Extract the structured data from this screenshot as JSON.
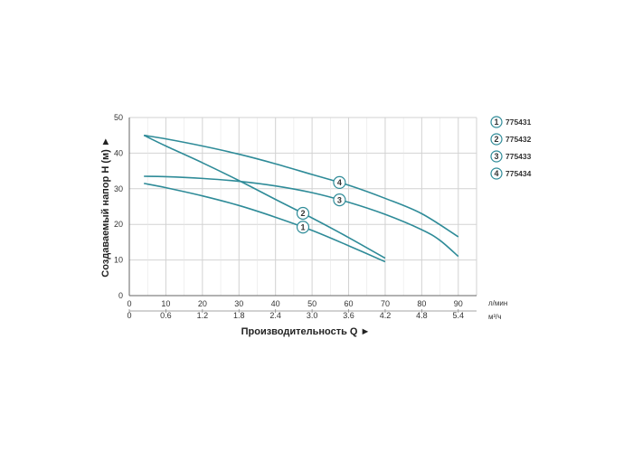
{
  "chart_data": {
    "type": "line",
    "ylabel": "Создаваемый напор H (м) ►",
    "xlabel": "Производительность Q ►",
    "x_unit": "л/мин",
    "x2_unit": "м³/ч",
    "xlim": [
      0,
      95
    ],
    "ylim": [
      0,
      50
    ],
    "x_ticks": [
      0,
      10,
      20,
      30,
      40,
      50,
      60,
      70,
      80,
      90
    ],
    "x2_ticks": [
      "0",
      "0.6",
      "1.2",
      "1.8",
      "2.4",
      "3.0",
      "3.6",
      "4.2",
      "4.8",
      "5.4"
    ],
    "y_ticks": [
      0,
      10,
      20,
      30,
      40,
      50
    ],
    "grid": true,
    "legend_position": "right",
    "line_color": "#2e8b98",
    "series": [
      {
        "name": "775431",
        "marker": "1",
        "marker_x": 47.5,
        "x": [
          4,
          10,
          20,
          30,
          40,
          50,
          60,
          70
        ],
        "y": [
          31.5,
          30.3,
          28,
          25.3,
          22,
          18.3,
          14,
          9.5
        ]
      },
      {
        "name": "775432",
        "marker": "2",
        "marker_x": 47.5,
        "x": [
          4,
          10,
          20,
          30,
          40,
          50,
          60,
          70
        ],
        "y": [
          45,
          42,
          37.3,
          32.3,
          27,
          21.8,
          16.3,
          10.5
        ]
      },
      {
        "name": "775433",
        "marker": "3",
        "marker_x": 57.5,
        "x": [
          4,
          10,
          20,
          30,
          40,
          50,
          60,
          70,
          80,
          85,
          90
        ],
        "y": [
          33.5,
          33.4,
          32.9,
          32.1,
          30.8,
          28.9,
          26.2,
          22.8,
          18.5,
          15.5,
          11
        ]
      },
      {
        "name": "775434",
        "marker": "4",
        "marker_x": 57.5,
        "x": [
          4,
          10,
          20,
          30,
          40,
          50,
          60,
          70,
          80,
          90
        ],
        "y": [
          45,
          44,
          42,
          39.7,
          37,
          34,
          31,
          27.3,
          23,
          16.5
        ]
      }
    ]
  }
}
